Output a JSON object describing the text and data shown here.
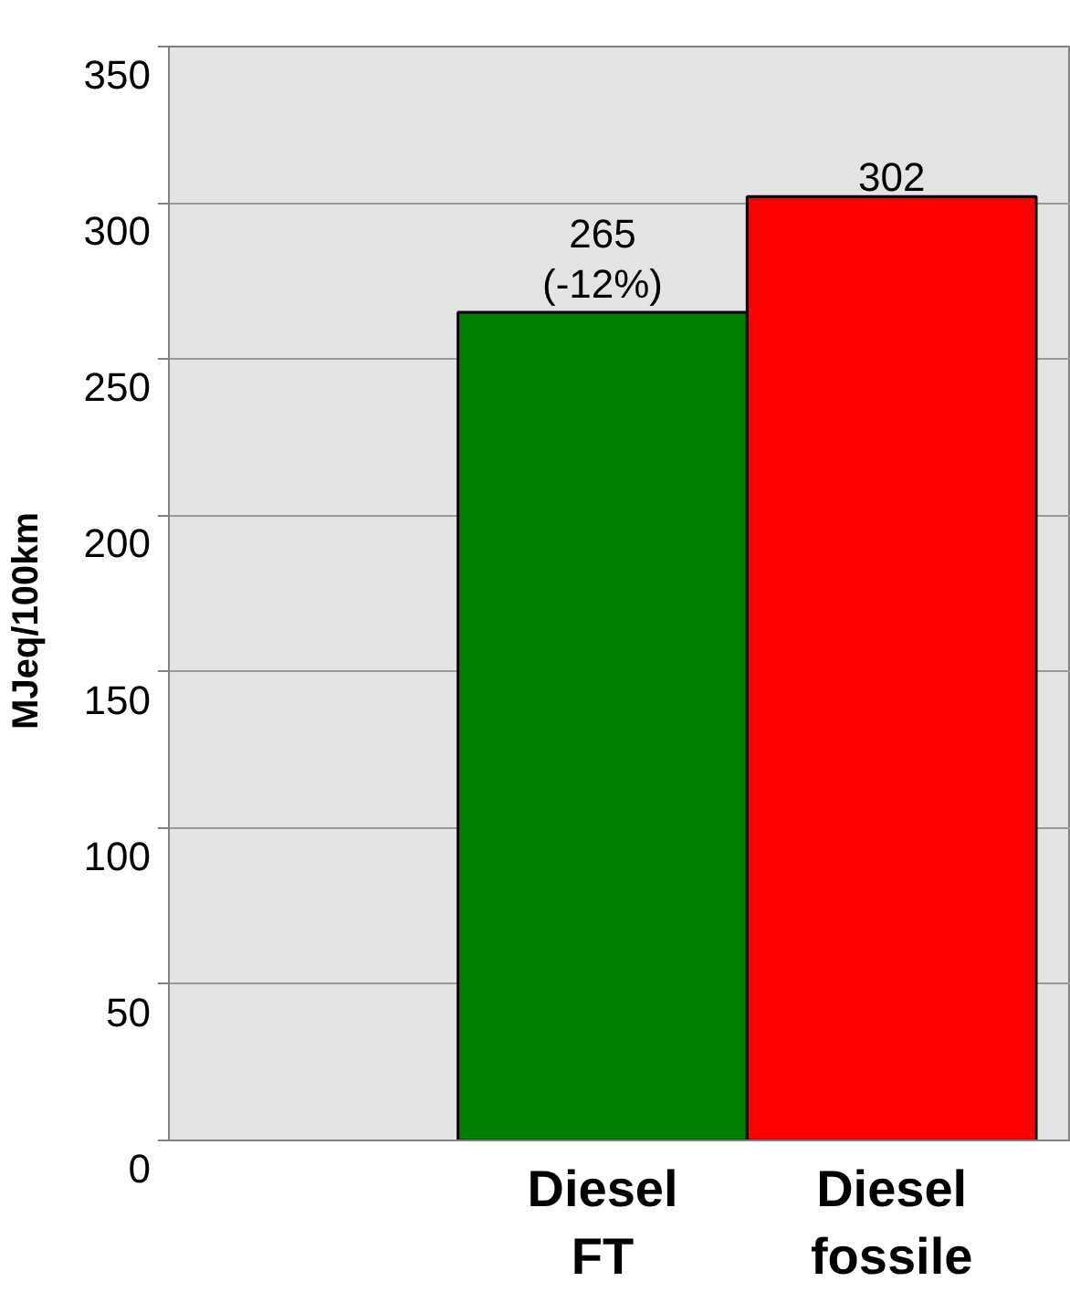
{
  "chart_data": {
    "type": "bar",
    "ylabel": "MJeq/100km",
    "categories": [
      "Diesel\nFT",
      "Diesel\nfossile"
    ],
    "values": [
      265,
      302
    ],
    "colors": [
      "#008000",
      "#ff0000"
    ],
    "value_labels": [
      "265\n(-12%)",
      "302"
    ],
    "ylim": [
      0,
      350
    ],
    "yticks": [
      0,
      50,
      100,
      150,
      200,
      250,
      300,
      350
    ],
    "grid": "y"
  }
}
